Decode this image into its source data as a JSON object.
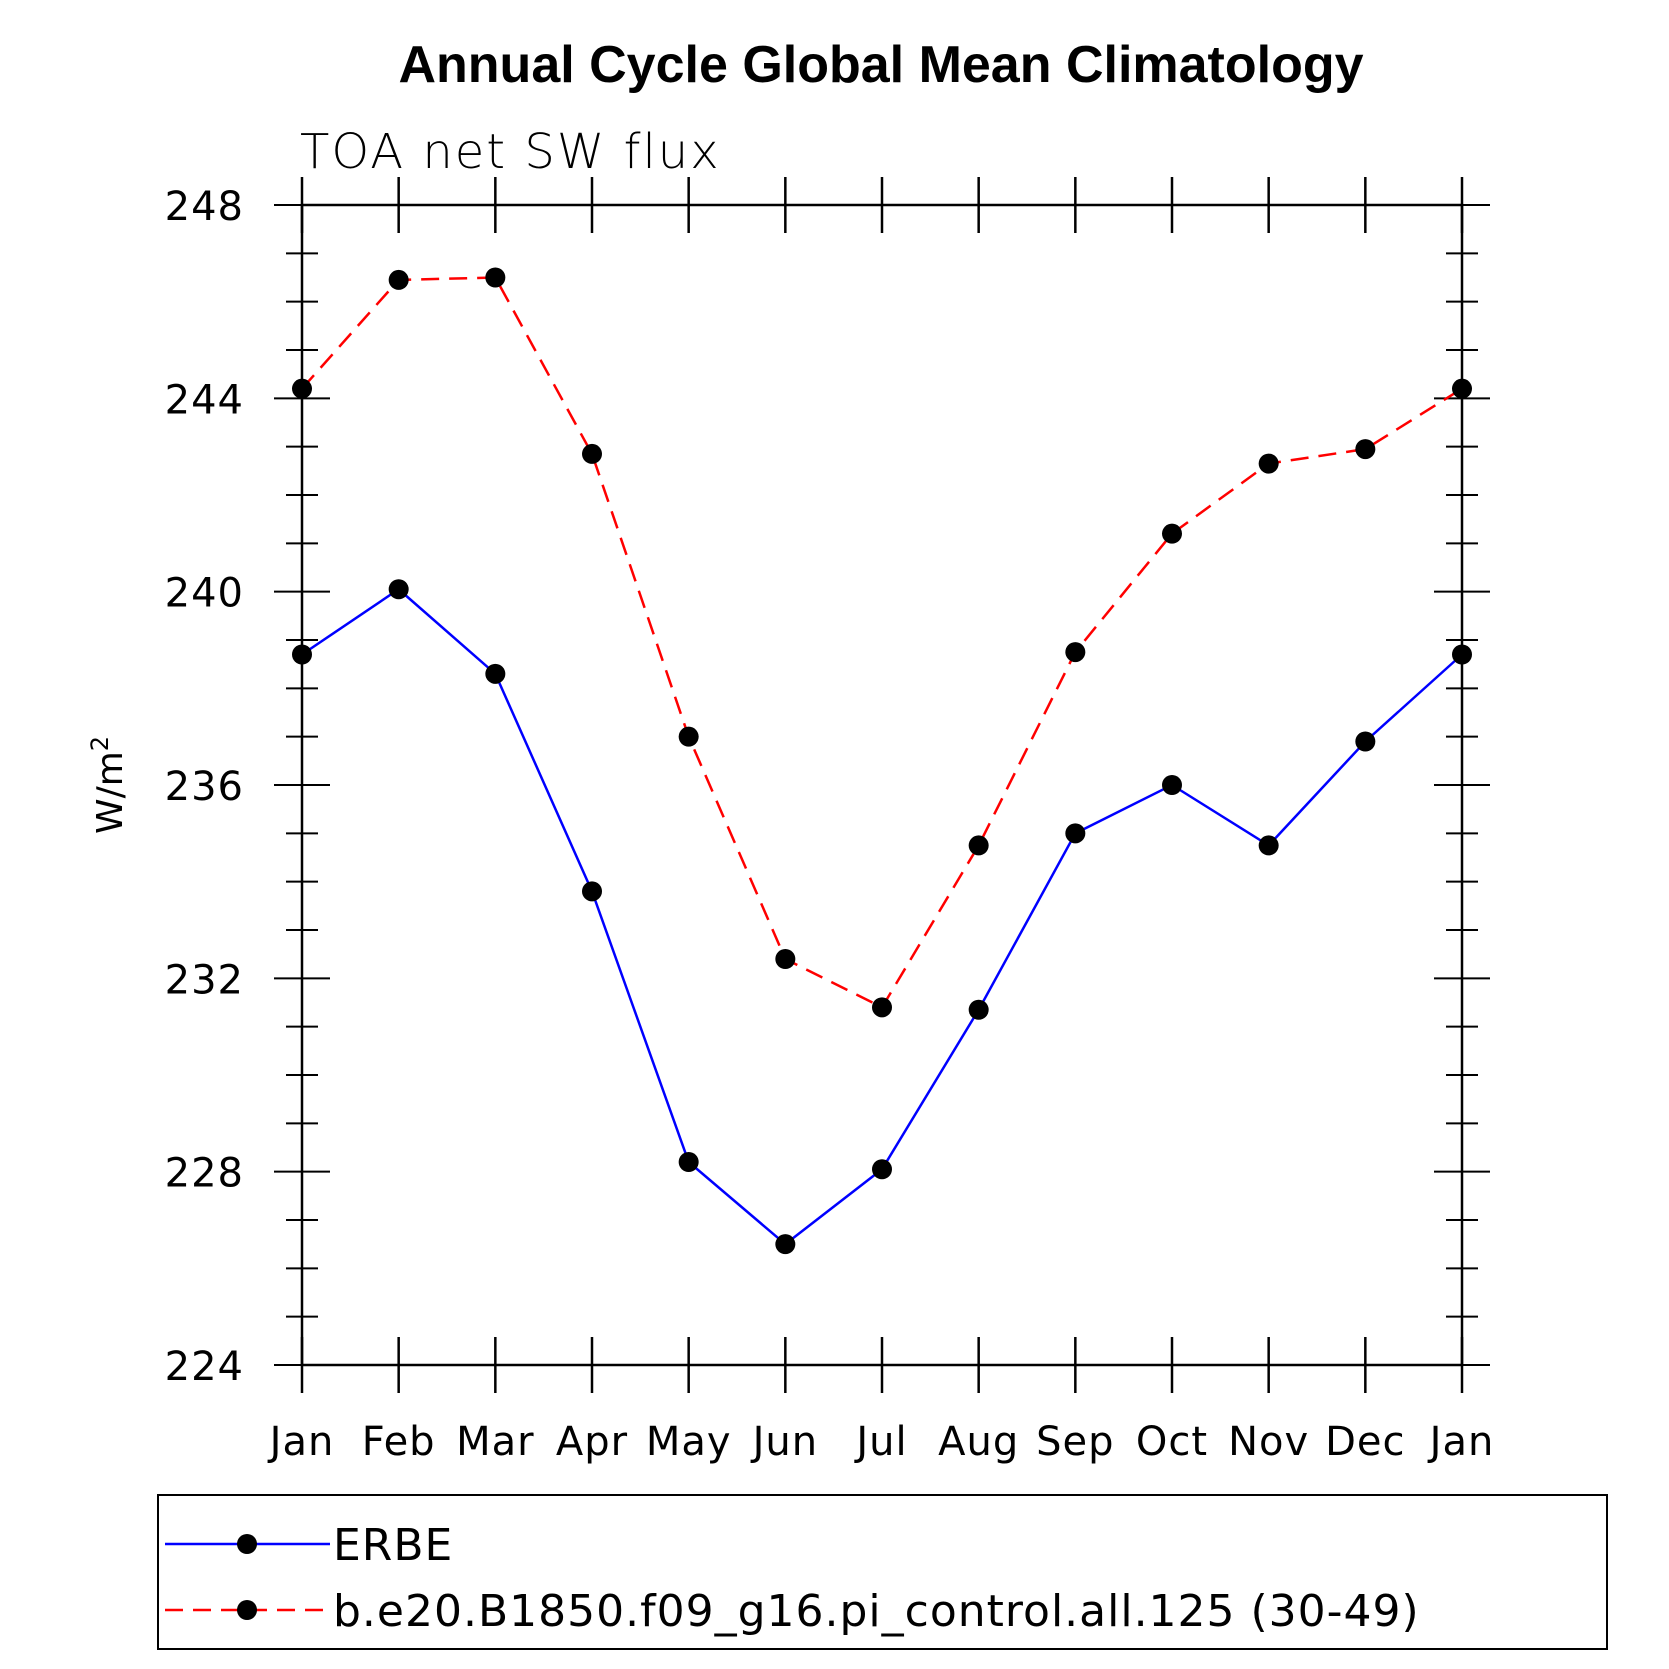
{
  "chart_data": {
    "type": "line",
    "title": "Annual Cycle Global Mean Climatology",
    "subtitle": "TOA net SW flux",
    "ylabel_base": "W/m",
    "ylabel_sup": "2",
    "xlabel": "",
    "categories": [
      "Jan",
      "Feb",
      "Mar",
      "Apr",
      "May",
      "Jun",
      "Jul",
      "Aug",
      "Sep",
      "Oct",
      "Nov",
      "Dec",
      "Jan"
    ],
    "ylim": [
      224,
      248
    ],
    "yticks": [
      224,
      228,
      232,
      236,
      240,
      244,
      248
    ],
    "yticks_labels": [
      "224",
      "228",
      "232",
      "236",
      "240",
      "244",
      "248"
    ],
    "series": [
      {
        "name": "ERBE",
        "color": "#0000ff",
        "style": "solid",
        "marker": "circle",
        "values": [
          238.7,
          240.05,
          238.3,
          233.8,
          228.2,
          226.5,
          228.05,
          231.35,
          235.0,
          236.0,
          234.75,
          236.9,
          238.7
        ]
      },
      {
        "name": "b.e20.B1850.f09_g16.pi_control.all.125 (30-49)",
        "color": "#ff0000",
        "style": "dashed",
        "marker": "circle",
        "values": [
          244.2,
          246.45,
          246.5,
          242.85,
          237.0,
          232.4,
          231.4,
          234.75,
          238.75,
          241.2,
          242.65,
          242.95,
          244.2
        ]
      }
    ],
    "legend_position": "bottom"
  }
}
